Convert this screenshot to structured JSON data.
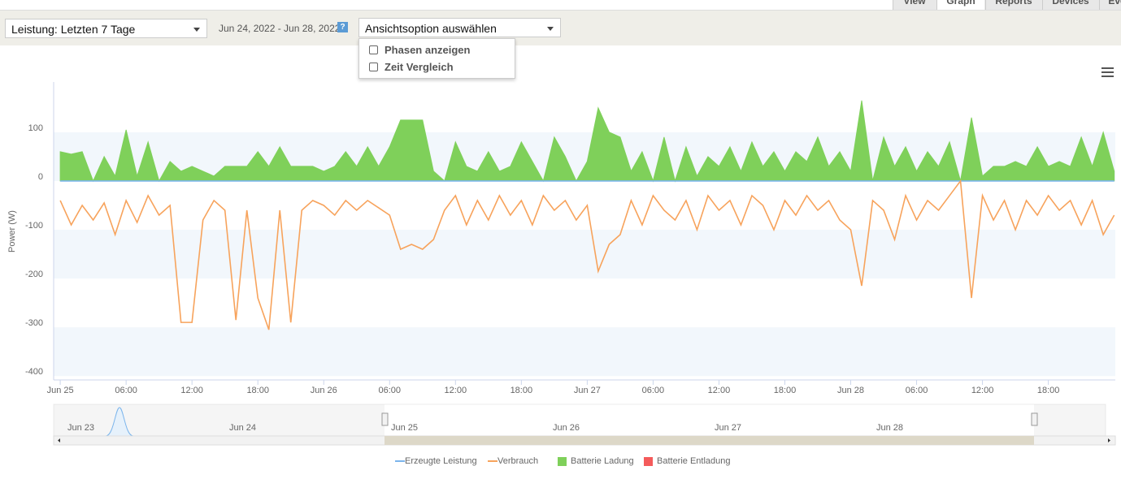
{
  "tabs": [
    "View",
    "Graph",
    "Reports",
    "Devices",
    "Events"
  ],
  "toolbar": {
    "period": "Leistung: Letzten 7 Tage",
    "date_range": "Jun 24, 2022 - Jun 28, 2022",
    "help": "?",
    "view_option": "Ansichtsoption auswählen",
    "options": [
      "Phasen anzeigen",
      "Zeit Vergleich"
    ]
  },
  "chart_data": {
    "type": "line",
    "ylabel": "Power (W)",
    "xlim": [
      -0.6,
      96.1
    ],
    "ylim": [
      -408,
      203
    ],
    "xticks": [
      {
        "value": 0,
        "label": "Jun 25"
      },
      {
        "value": 6,
        "label": "06:00"
      },
      {
        "value": 12,
        "label": "12:00"
      },
      {
        "value": 18,
        "label": "18:00"
      },
      {
        "value": 24,
        "label": "Jun 26"
      },
      {
        "value": 30,
        "label": "06:00"
      },
      {
        "value": 36,
        "label": "12:00"
      },
      {
        "value": 42,
        "label": "18:00"
      },
      {
        "value": 48,
        "label": "Jun 27"
      },
      {
        "value": 54,
        "label": "06:00"
      },
      {
        "value": 60,
        "label": "12:00"
      },
      {
        "value": 66,
        "label": "18:00"
      },
      {
        "value": 72,
        "label": "Jun 28"
      },
      {
        "value": 78,
        "label": "06:00"
      },
      {
        "value": 84,
        "label": "12:00"
      },
      {
        "value": 90,
        "label": "18:00"
      }
    ],
    "yticks": [
      -400,
      -300,
      -200,
      -100,
      0,
      100
    ],
    "bands": true,
    "x": [
      0,
      1,
      2,
      3,
      4,
      5,
      6,
      7,
      8,
      9,
      10,
      11,
      12,
      13,
      14,
      15,
      16,
      17,
      18,
      19,
      20,
      21,
      22,
      23,
      24,
      25,
      26,
      27,
      28,
      29,
      30,
      31,
      32,
      33,
      34,
      35,
      36,
      37,
      38,
      39,
      40,
      41,
      42,
      43,
      44,
      45,
      46,
      47,
      48,
      49,
      50,
      51,
      52,
      53,
      54,
      55,
      56,
      57,
      58,
      59,
      60,
      61,
      62,
      63,
      64,
      65,
      66,
      67,
      68,
      69,
      70,
      71,
      72,
      73,
      74,
      75,
      76,
      77,
      78,
      79,
      80,
      81,
      82,
      83,
      84,
      85,
      86,
      87,
      88,
      89,
      90,
      91,
      92,
      93,
      94,
      95,
      96
    ],
    "series": [
      {
        "name": "Batterie Ladung",
        "color": "#7fd05a",
        "style": "area",
        "values": [
          60,
          55,
          60,
          0,
          50,
          10,
          105,
          10,
          80,
          0,
          40,
          20,
          30,
          20,
          10,
          30,
          30,
          30,
          60,
          30,
          70,
          30,
          30,
          30,
          20,
          30,
          60,
          30,
          70,
          30,
          70,
          125,
          125,
          125,
          20,
          0,
          80,
          30,
          20,
          60,
          20,
          30,
          80,
          40,
          0,
          90,
          50,
          0,
          40,
          150,
          100,
          90,
          20,
          60,
          0,
          90,
          0,
          70,
          10,
          50,
          30,
          70,
          20,
          80,
          30,
          60,
          20,
          60,
          40,
          90,
          30,
          60,
          20,
          165,
          0,
          90,
          30,
          70,
          20,
          60,
          30,
          80,
          0,
          130,
          10,
          30,
          30,
          40,
          30,
          70,
          30,
          40,
          30,
          90,
          30,
          100,
          20
        ]
      },
      {
        "name": "Erzeugte Leistung",
        "color": "#7cb5ec",
        "style": "line",
        "values": [
          0,
          0,
          0,
          0,
          0,
          0,
          0,
          0,
          0,
          0,
          0,
          0,
          0,
          0,
          0,
          0,
          0,
          0,
          0,
          0,
          0,
          0,
          0,
          0,
          0,
          0,
          0,
          0,
          0,
          0,
          0,
          0,
          0,
          0,
          0,
          0,
          0,
          0,
          0,
          0,
          0,
          0,
          0,
          0,
          0,
          0,
          0,
          0,
          0,
          0,
          0,
          0,
          0,
          0,
          0,
          0,
          0,
          0,
          0,
          0,
          0,
          0,
          0,
          0,
          0,
          0,
          0,
          0,
          0,
          0,
          0,
          0,
          0,
          0,
          0,
          0,
          0,
          0,
          0,
          0,
          0,
          0,
          0,
          0,
          0,
          0,
          0,
          0,
          0,
          0,
          0,
          0,
          0,
          0,
          0,
          0,
          0
        ]
      },
      {
        "name": "Verbrauch",
        "color": "#f7a35c",
        "style": "line",
        "values": [
          -40,
          -90,
          -50,
          -80,
          -45,
          -110,
          -40,
          -85,
          -30,
          -70,
          -50,
          -290,
          -290,
          -80,
          -40,
          -60,
          -285,
          -60,
          -240,
          -305,
          -60,
          -290,
          -60,
          -40,
          -50,
          -70,
          -40,
          -60,
          -40,
          -55,
          -70,
          -140,
          -130,
          -140,
          -120,
          -60,
          -30,
          -90,
          -40,
          -80,
          -30,
          -70,
          -40,
          -90,
          -30,
          -60,
          -40,
          -80,
          -50,
          -185,
          -130,
          -110,
          -40,
          -90,
          -30,
          -60,
          -80,
          -40,
          -100,
          -30,
          -60,
          -40,
          -90,
          -30,
          -50,
          -100,
          -40,
          -70,
          -30,
          -60,
          -40,
          -80,
          -100,
          -215,
          -40,
          -60,
          -120,
          -30,
          -80,
          -40,
          -60,
          -30,
          0,
          -240,
          -30,
          -80,
          -40,
          -100,
          -40,
          -70,
          -30,
          -60,
          -40,
          -90,
          -40,
          -110,
          -70
        ]
      },
      {
        "name": "Batterie Entladung",
        "color": "#f45b5b",
        "style": "area"
      }
    ],
    "legend_order": [
      1,
      2,
      0,
      3
    ],
    "navigator": [
      "Jun 23",
      "Jun 24",
      "Jun 25",
      "Jun 26",
      "Jun 27",
      "Jun 28"
    ]
  }
}
